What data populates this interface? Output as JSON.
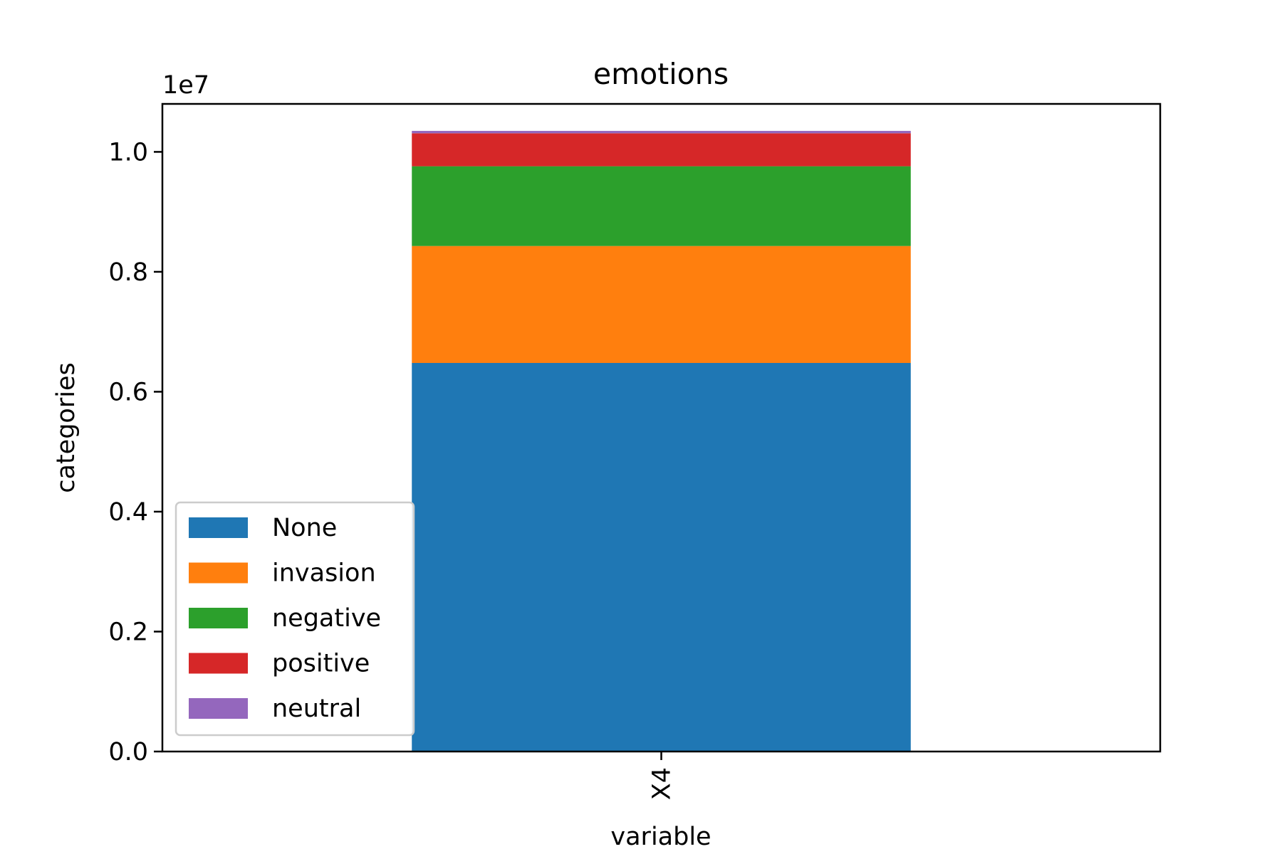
{
  "chart_data": {
    "type": "bar",
    "stacked": true,
    "title": "emotions",
    "xlabel": "variable",
    "ylabel": "categories",
    "y_offset_label": "1e7",
    "y_scale": 10000000,
    "categories": [
      "X4"
    ],
    "ylim": [
      0,
      10800000
    ],
    "yticks": [
      0,
      2000000,
      4000000,
      6000000,
      8000000,
      10000000
    ],
    "ytick_labels": [
      "0.0",
      "0.2",
      "0.4",
      "0.6",
      "0.8",
      "1.0"
    ],
    "grid": false,
    "legend_position": "lower-left",
    "series": [
      {
        "name": "None",
        "values": [
          6480000
        ],
        "color": "#1f77b4"
      },
      {
        "name": "invasion",
        "values": [
          1950000
        ],
        "color": "#ff7f0e"
      },
      {
        "name": "negative",
        "values": [
          1330000
        ],
        "color": "#2ca02c"
      },
      {
        "name": "positive",
        "values": [
          550000
        ],
        "color": "#d62728"
      },
      {
        "name": "neutral",
        "values": [
          40000
        ],
        "color": "#9467bd"
      }
    ]
  }
}
